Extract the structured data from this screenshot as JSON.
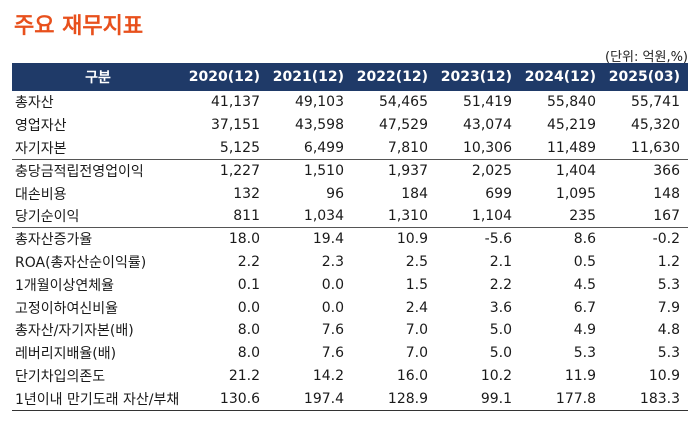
{
  "title": "주요 재무지표",
  "unit": "(단위: 억원,%)",
  "header": [
    "구분",
    "2020(12)",
    "2021(12)",
    "2022(12)",
    "2023(12)",
    "2024(12)",
    "2025(03)"
  ],
  "rows": [
    [
      "총자산",
      "41,137",
      "49,103",
      "54,465",
      "51,419",
      "55,840",
      "55,741"
    ],
    [
      "영업자산",
      "37,151",
      "43,598",
      "47,529",
      "43,074",
      "45,219",
      "45,320"
    ],
    [
      "자기자본",
      "5,125",
      "6,499",
      "7,810",
      "10,306",
      "11,489",
      "11,630"
    ],
    [
      "충당금적립전영업이익",
      "1,227",
      "1,510",
      "1,937",
      "2,025",
      "1,404",
      "366"
    ],
    [
      "대손비용",
      "132",
      "96",
      "184",
      "699",
      "1,095",
      "148"
    ],
    [
      "당기순이익",
      "811",
      "1,034",
      "1,310",
      "1,104",
      "235",
      "167"
    ],
    [
      "총자산증가율",
      "18.0",
      "19.4",
      "10.9",
      "-5.6",
      "8.6",
      "-0.2"
    ],
    [
      "ROA(총자산순이익률)",
      "2.2",
      "2.3",
      "2.5",
      "2.1",
      "0.5",
      "1.2"
    ],
    [
      "1개월이상연체율",
      "0.1",
      "0.0",
      "1.5",
      "2.2",
      "4.5",
      "5.3"
    ],
    [
      "고정이하여신비율",
      "0.0",
      "0.0",
      "2.4",
      "3.6",
      "6.7",
      "7.9"
    ],
    [
      "총자산/자기자본(배)",
      "8.0",
      "7.6",
      "7.0",
      "5.0",
      "4.9",
      "4.8"
    ],
    [
      "레버리지배율(배)",
      "8.0",
      "7.6",
      "7.0",
      "5.0",
      "5.3",
      "5.3"
    ],
    [
      "단기차입의존도",
      "21.2",
      "14.2",
      "16.0",
      "10.2",
      "11.9",
      "10.9"
    ],
    [
      "1년이내 만기도래 자산/부채",
      "130.6",
      "197.4",
      "128.9",
      "99.1",
      "177.8",
      "183.3"
    ]
  ]
}
